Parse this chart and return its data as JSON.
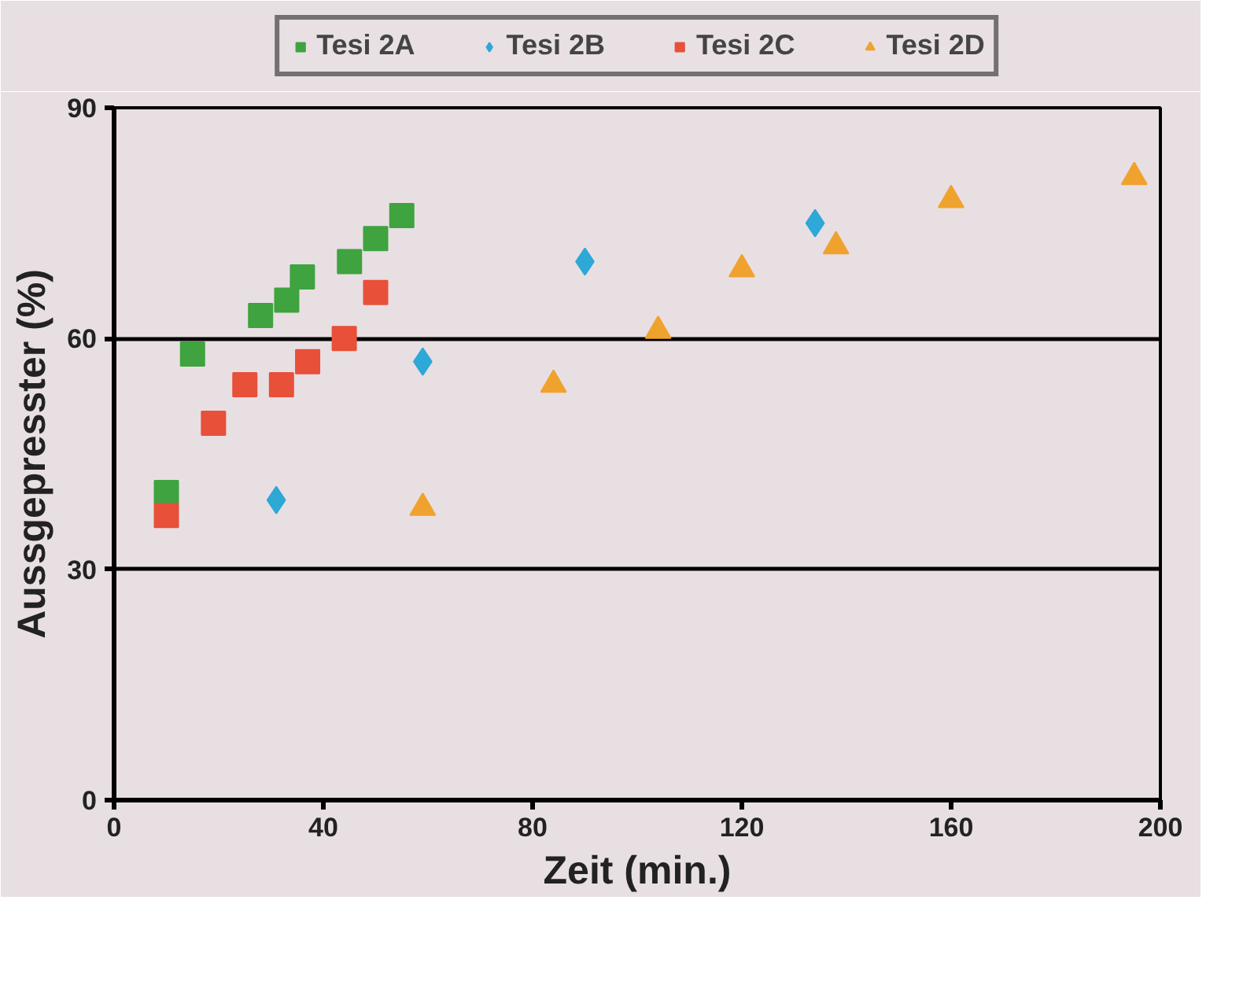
{
  "chart_data": {
    "type": "scatter",
    "xlabel": "Zeit (min.)",
    "ylabel": "Aussgepresster (%)",
    "xlim": [
      0,
      200
    ],
    "xticks": [
      0,
      40,
      80,
      120,
      160,
      200
    ],
    "ylim": [
      0,
      90
    ],
    "yticks": [
      0,
      30,
      60,
      90
    ],
    "grid": "y",
    "legend": "top",
    "series": [
      {
        "name": "Tesi 2A",
        "color": "#3fa33f",
        "marker": "square",
        "x": [
          10,
          15,
          28,
          33,
          36,
          45,
          50,
          55
        ],
        "values": [
          40,
          58,
          63,
          65,
          68,
          70,
          73,
          76
        ]
      },
      {
        "name": "Tesi 2B",
        "color": "#2ea8d6",
        "marker": "diamond",
        "x": [
          31,
          59,
          90,
          134
        ],
        "values": [
          39,
          57,
          70,
          75
        ]
      },
      {
        "name": "Tesi 2C",
        "color": "#e8503a",
        "marker": "square",
        "x": [
          10,
          19,
          25,
          32,
          37,
          44,
          50
        ],
        "values": [
          37,
          49,
          54,
          54,
          57,
          60,
          66
        ]
      },
      {
        "name": "Tesi 2D",
        "color": "#f0a22e",
        "marker": "triangle",
        "x": [
          59,
          84,
          104,
          120,
          138,
          160,
          195
        ],
        "values": [
          38,
          54,
          61,
          69,
          72,
          78,
          81
        ]
      }
    ]
  }
}
